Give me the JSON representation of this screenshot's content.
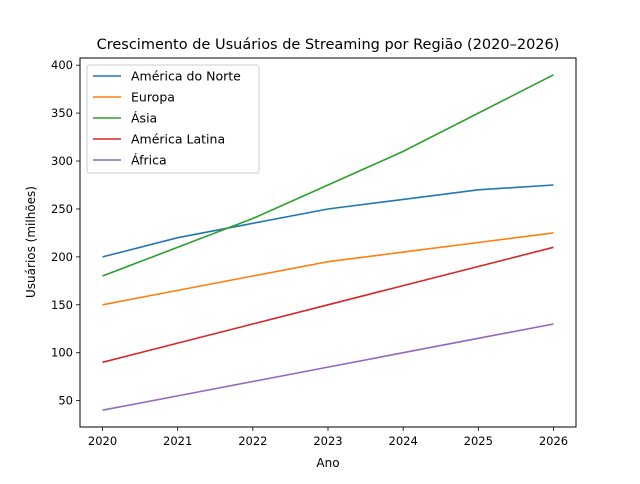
{
  "chart_data": {
    "type": "line",
    "title": "Crescimento de Usuários de Streaming por Região (2020–2026)",
    "xlabel": "Ano",
    "ylabel": "Usuários (milhões)",
    "x": [
      2020,
      2021,
      2022,
      2023,
      2024,
      2025,
      2026
    ],
    "xticks": [
      "2020",
      "2021",
      "2022",
      "2023",
      "2024",
      "2025",
      "2026"
    ],
    "yticks": [
      "50",
      "100",
      "150",
      "200",
      "250",
      "300",
      "350",
      "400"
    ],
    "ytick_values": [
      50,
      100,
      150,
      200,
      250,
      300,
      350,
      400
    ],
    "xlim": [
      2019.7,
      2026.3
    ],
    "ylim": [
      22.5,
      407.5
    ],
    "grid": false,
    "legend_position": "top-left",
    "series": [
      {
        "name": "América do Norte",
        "color": "#1f77b4",
        "values": [
          200,
          220,
          235,
          250,
          260,
          270,
          275
        ]
      },
      {
        "name": "Europa",
        "color": "#ff7f0e",
        "values": [
          150,
          165,
          180,
          195,
          205,
          215,
          225
        ]
      },
      {
        "name": "Ásia",
        "color": "#2ca02c",
        "values": [
          180,
          210,
          240,
          275,
          310,
          350,
          390
        ]
      },
      {
        "name": "América Latina",
        "color": "#d62728",
        "values": [
          90,
          110,
          130,
          150,
          170,
          190,
          210
        ]
      },
      {
        "name": "África",
        "color": "#9467bd",
        "values": [
          40,
          55,
          70,
          85,
          100,
          115,
          130
        ]
      }
    ]
  }
}
